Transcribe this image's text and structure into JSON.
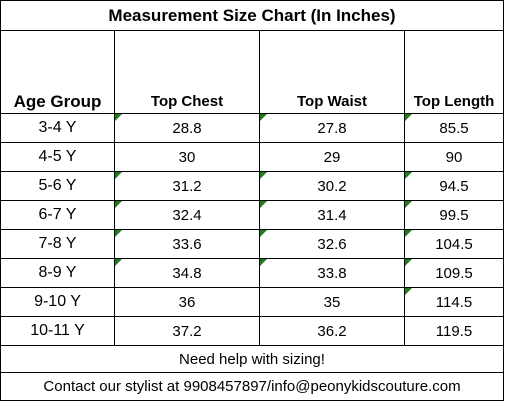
{
  "title": "Measurement Size Chart  (In Inches)",
  "headers": [
    "Age Group",
    "Top  Chest",
    "Top Waist",
    "Top Length"
  ],
  "rows": [
    {
      "age": "3-4 Y",
      "chest": "28.8",
      "waist": "27.8",
      "length": "85.5"
    },
    {
      "age": "4-5 Y",
      "chest": "30",
      "waist": "29",
      "length": "90"
    },
    {
      "age": "5-6 Y",
      "chest": "31.2",
      "waist": "30.2",
      "length": "94.5"
    },
    {
      "age": "6-7 Y",
      "chest": "32.4",
      "waist": "31.4",
      "length": "99.5"
    },
    {
      "age": "7-8 Y",
      "chest": "33.6",
      "waist": "32.6",
      "length": "104.5"
    },
    {
      "age": "8-9 Y",
      "chest": "34.8",
      "waist": "33.8",
      "length": "109.5"
    },
    {
      "age": "9-10 Y",
      "chest": "36",
      "waist": "35",
      "length": "114.5"
    },
    {
      "age": "10-11 Y",
      "chest": "37.2",
      "waist": "36.2",
      "length": "119.5"
    }
  ],
  "footer": {
    "note": "Need help with sizing!",
    "contact": "Contact our stylist at 9908457897/info@peonykidscouture.com"
  },
  "colors": {
    "error_indicator": "#1e7b1e"
  }
}
